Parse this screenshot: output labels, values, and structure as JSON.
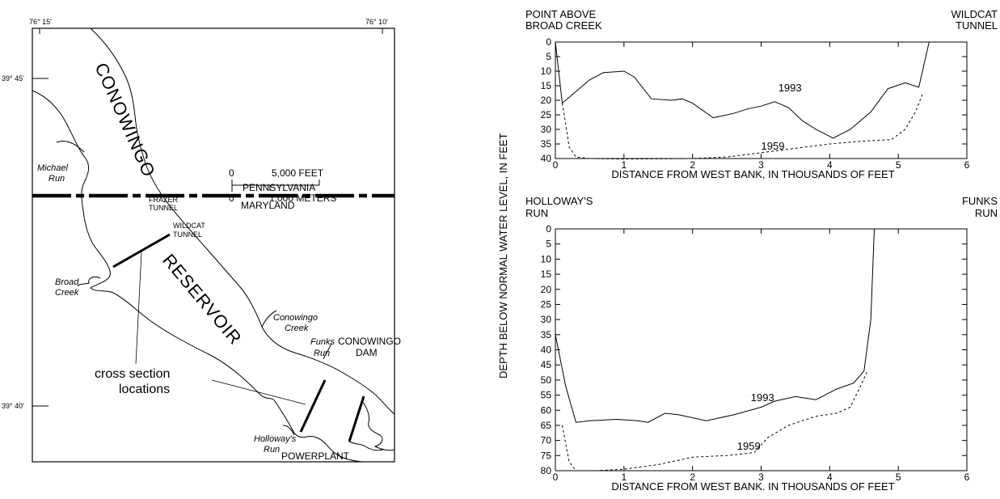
{
  "map": {
    "lon_labels": [
      "76° 15'",
      "76° 10'"
    ],
    "lat_labels": [
      "39° 45'",
      "39° 40'"
    ],
    "water_labels": [
      "CONOWINGO",
      "RESERVOIR"
    ],
    "state_labels": [
      "PENNSYLVANIA",
      "MARYLAND"
    ],
    "scale": {
      "feet_label": "5,000 FEET",
      "meters_label": "1,000 METERS",
      "zero": "0"
    },
    "features": {
      "michael_run": [
        "Michael",
        "Run"
      ],
      "broad_creek": [
        "Broad",
        "Creek"
      ],
      "frazer_tunnel": [
        "FRAZER",
        "TUNNEL"
      ],
      "wildcat_tunnel": [
        "WILDCAT",
        "TUNNEL"
      ],
      "conowingo_creek": [
        "Conowingo",
        "Creek"
      ],
      "funks_run": [
        "Funks",
        "Run"
      ],
      "conowingo_dam": [
        "CONOWINGO",
        "DAM"
      ],
      "holloways_run": [
        "Holloway's",
        "Run"
      ],
      "powerplant": "POWERPLANT"
    },
    "cross_section_label": [
      "cross section",
      "locations"
    ]
  },
  "y_axis_title": "DEPTH BELOW NORMAL WATER LEVEL, IN FEET",
  "chart_data": [
    {
      "type": "line",
      "left_end_label": [
        "POINT ABOVE",
        "BROAD CREEK"
      ],
      "right_end_label": [
        "WILDCAT",
        "TUNNEL"
      ],
      "xlabel": "DISTANCE FROM WEST BANK, IN THOUSANDS OF FEET",
      "xlim": [
        0,
        6
      ],
      "ylim": [
        0,
        40
      ],
      "y_inverted": true,
      "x_ticks": [
        "0",
        "1",
        "2",
        "3",
        "4",
        "5",
        "6"
      ],
      "y_ticks": [
        "0",
        "5",
        "10",
        "15",
        "20",
        "25",
        "30",
        "35",
        "40"
      ],
      "series": [
        {
          "name": "1993",
          "style": "solid",
          "x": [
            0,
            0.1,
            0.25,
            0.5,
            0.7,
            1.0,
            1.15,
            1.4,
            1.7,
            1.85,
            2.0,
            2.3,
            2.6,
            2.8,
            3.0,
            3.2,
            3.4,
            3.6,
            3.8,
            4.05,
            4.3,
            4.6,
            4.85,
            5.1,
            5.3,
            5.45
          ],
          "y": [
            0,
            21,
            18,
            13,
            10.5,
            10,
            12,
            19.5,
            20,
            19.5,
            21,
            26,
            24.5,
            23,
            22,
            20.5,
            22.5,
            27,
            30,
            33,
            30,
            24,
            16,
            14,
            15.5,
            0
          ]
        },
        {
          "name": "1959",
          "style": "dashed",
          "x": [
            0.1,
            0.15,
            0.2,
            0.3,
            0.5,
            1.0,
            2.0,
            2.5,
            3.0,
            3.5,
            4.0,
            4.5,
            4.9,
            5.1,
            5.25,
            5.35
          ],
          "y": [
            21,
            28,
            36,
            39.5,
            40,
            40.2,
            40,
            39.5,
            38,
            36.5,
            35,
            34,
            33.5,
            30,
            24,
            18
          ]
        }
      ]
    },
    {
      "type": "line",
      "left_end_label": [
        "HOLLOWAY'S",
        "RUN"
      ],
      "right_end_label": [
        "FUNKS",
        "RUN"
      ],
      "xlabel": "DISTANCE FROM WEST BANK. IN THOUSANDS OF FEET",
      "xlim": [
        0,
        6
      ],
      "ylim": [
        0,
        80
      ],
      "y_inverted": true,
      "x_ticks": [
        "0",
        "1",
        "2",
        "3",
        "4",
        "5",
        "6"
      ],
      "y_ticks": [
        "0",
        "5",
        "10",
        "15",
        "20",
        "25",
        "30",
        "35",
        "40",
        "45",
        "50",
        "55",
        "60",
        "65",
        "70",
        "75",
        "80"
      ],
      "series": [
        {
          "name": "1993",
          "style": "solid",
          "x": [
            0,
            0.15,
            0.3,
            0.5,
            0.9,
            1.2,
            1.35,
            1.6,
            1.8,
            2.2,
            2.6,
            3.0,
            3.2,
            3.5,
            3.8,
            4.1,
            4.35,
            4.5,
            4.6,
            4.65
          ],
          "y": [
            35,
            52,
            64,
            63.5,
            63,
            63.5,
            64,
            61,
            61.5,
            63.5,
            61.5,
            59,
            57,
            55.5,
            56.5,
            53,
            51,
            47,
            30,
            0
          ]
        },
        {
          "name": "1959",
          "style": "dashed",
          "x": [
            0.1,
            0.2,
            0.3,
            0.6,
            1.0,
            1.5,
            2.0,
            2.5,
            2.9,
            3.1,
            3.4,
            3.8,
            4.1,
            4.3,
            4.45,
            4.55
          ],
          "y": [
            65,
            77,
            80,
            80,
            79.5,
            78,
            75.5,
            75,
            74,
            69,
            65,
            62,
            61,
            59,
            52,
            47
          ]
        }
      ]
    }
  ]
}
